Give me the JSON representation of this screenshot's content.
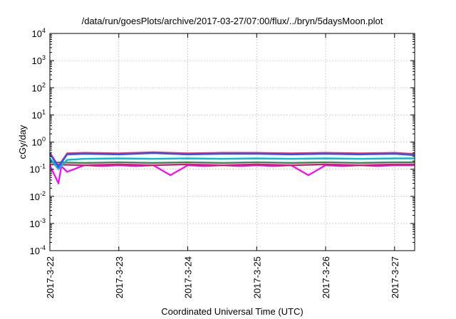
{
  "chart_data": {
    "type": "line",
    "title": "/data/run/goesPlots/archive/2017-03-27/07:00/flux/../bryn/5daysMoon.plot",
    "xlabel": "Coordinated Universal Time (UTC)",
    "ylabel": "cGy/day",
    "yscale": "log",
    "ylim": [
      0.0001,
      10000
    ],
    "y_ticks": [
      {
        "base": "10",
        "exp": "-4",
        "value": 0.0001
      },
      {
        "base": "10",
        "exp": "-3",
        "value": 0.001
      },
      {
        "base": "10",
        "exp": "-2",
        "value": 0.01
      },
      {
        "base": "10",
        "exp": "-1",
        "value": 0.1
      },
      {
        "base": "10",
        "exp": "0",
        "value": 1
      },
      {
        "base": "10",
        "exp": "1",
        "value": 10
      },
      {
        "base": "10",
        "exp": "2",
        "value": 100
      },
      {
        "base": "10",
        "exp": "3",
        "value": 1000
      },
      {
        "base": "10",
        "exp": "4",
        "value": 10000
      }
    ],
    "xlim": [
      "2017-03-22",
      "2017-03-27T07:00"
    ],
    "x_ticks": [
      {
        "label": "2017-3-22",
        "value": "2017-03-22"
      },
      {
        "label": "2017-3-23",
        "value": "2017-03-23"
      },
      {
        "label": "2017-3-24",
        "value": "2017-03-24"
      },
      {
        "label": "2017-3-25",
        "value": "2017-03-25"
      },
      {
        "label": "2017-3-26",
        "value": "2017-03-26"
      },
      {
        "label": "2017-3-27",
        "value": "2017-03-27"
      }
    ],
    "grid": true,
    "legend": "none",
    "series": [
      {
        "color": "#ff00ff",
        "x": [
          "2017-03-22T00:00",
          "2017-03-22T03:00",
          "2017-03-22T04:00",
          "2017-03-22T06:00",
          "2017-03-22T12:00",
          "2017-03-22T18:00",
          "2017-03-23T00:00",
          "2017-03-23T06:00",
          "2017-03-23T12:00",
          "2017-03-23T18:00",
          "2017-03-24T00:00",
          "2017-03-24T06:00",
          "2017-03-24T12:00",
          "2017-03-24T18:00",
          "2017-03-25T00:00",
          "2017-03-25T06:00",
          "2017-03-25T12:00",
          "2017-03-25T18:00",
          "2017-03-26T00:00",
          "2017-03-26T06:00",
          "2017-03-26T12:00",
          "2017-03-26T18:00",
          "2017-03-27T00:00",
          "2017-03-27T07:00"
        ],
        "values": [
          0.14,
          0.03,
          0.13,
          0.08,
          0.14,
          0.13,
          0.14,
          0.13,
          0.14,
          0.06,
          0.14,
          0.13,
          0.14,
          0.13,
          0.14,
          0.13,
          0.14,
          0.06,
          0.14,
          0.13,
          0.14,
          0.13,
          0.14,
          0.14
        ]
      },
      {
        "color": "#cc2266",
        "x": [
          "2017-03-22T00:00",
          "2017-03-22T12:00",
          "2017-03-23T00:00",
          "2017-03-23T12:00",
          "2017-03-24T00:00",
          "2017-03-24T12:00",
          "2017-03-25T00:00",
          "2017-03-25T12:00",
          "2017-03-26T00:00",
          "2017-03-26T12:00",
          "2017-03-27T00:00",
          "2017-03-27T07:00"
        ],
        "values": [
          0.15,
          0.14,
          0.15,
          0.14,
          0.15,
          0.14,
          0.15,
          0.14,
          0.15,
          0.14,
          0.15,
          0.15
        ]
      },
      {
        "color": "#2e8b57",
        "x": [
          "2017-03-22T00:00",
          "2017-03-22T12:00",
          "2017-03-23T00:00",
          "2017-03-23T12:00",
          "2017-03-24T00:00",
          "2017-03-24T12:00",
          "2017-03-25T00:00",
          "2017-03-25T12:00",
          "2017-03-26T00:00",
          "2017-03-26T12:00",
          "2017-03-27T00:00",
          "2017-03-27T07:00"
        ],
        "values": [
          0.18,
          0.17,
          0.18,
          0.17,
          0.18,
          0.17,
          0.18,
          0.17,
          0.18,
          0.17,
          0.18,
          0.18
        ]
      },
      {
        "color": "#00bcd4",
        "x": [
          "2017-03-22T00:00",
          "2017-03-22T03:00",
          "2017-03-22T06:00",
          "2017-03-22T12:00",
          "2017-03-23T00:00",
          "2017-03-23T12:00",
          "2017-03-24T00:00",
          "2017-03-24T12:00",
          "2017-03-25T00:00",
          "2017-03-25T12:00",
          "2017-03-26T00:00",
          "2017-03-26T12:00",
          "2017-03-27T00:00",
          "2017-03-27T07:00"
        ],
        "values": [
          0.25,
          0.1,
          0.22,
          0.24,
          0.25,
          0.24,
          0.25,
          0.24,
          0.25,
          0.24,
          0.25,
          0.24,
          0.25,
          0.25
        ]
      },
      {
        "color": "#ff2222",
        "x": [
          "2017-03-22T00:00",
          "2017-03-22T03:00",
          "2017-03-22T06:00",
          "2017-03-22T12:00",
          "2017-03-23T00:00",
          "2017-03-23T12:00",
          "2017-03-24T00:00",
          "2017-03-24T12:00",
          "2017-03-25T00:00",
          "2017-03-25T12:00",
          "2017-03-26T00:00",
          "2017-03-26T12:00",
          "2017-03-27T00:00",
          "2017-03-27T07:00"
        ],
        "values": [
          0.4,
          0.13,
          0.38,
          0.4,
          0.38,
          0.42,
          0.38,
          0.4,
          0.4,
          0.38,
          0.4,
          0.38,
          0.4,
          0.36
        ]
      },
      {
        "color": "#3355ff",
        "x": [
          "2017-03-22T00:00",
          "2017-03-22T03:00",
          "2017-03-22T06:00",
          "2017-03-22T12:00",
          "2017-03-23T00:00",
          "2017-03-23T12:00",
          "2017-03-24T00:00",
          "2017-03-24T12:00",
          "2017-03-25T00:00",
          "2017-03-25T12:00",
          "2017-03-26T00:00",
          "2017-03-26T12:00",
          "2017-03-27T00:00",
          "2017-03-27T07:00"
        ],
        "values": [
          0.37,
          0.12,
          0.35,
          0.37,
          0.35,
          0.39,
          0.35,
          0.37,
          0.37,
          0.35,
          0.37,
          0.35,
          0.37,
          0.33
        ]
      }
    ]
  }
}
